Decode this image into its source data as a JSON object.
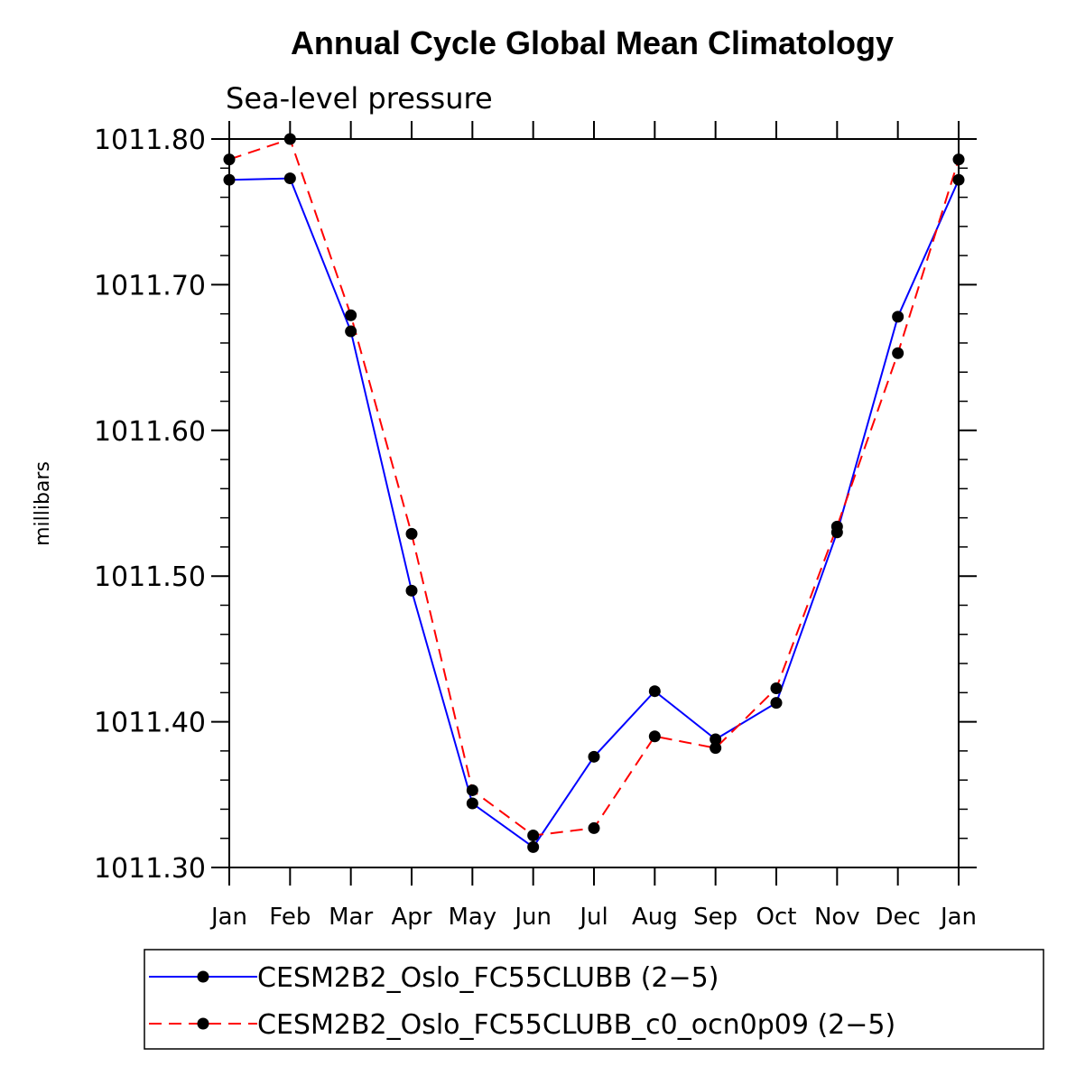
{
  "chart_data": {
    "type": "line",
    "title": "Annual Cycle Global Mean Climatology",
    "subtitle": "Sea-level pressure",
    "xlabel": "",
    "ylabel": "millibars",
    "categories": [
      "Jan",
      "Feb",
      "Mar",
      "Apr",
      "May",
      "Jun",
      "Jul",
      "Aug",
      "Sep",
      "Oct",
      "Nov",
      "Dec",
      "Jan"
    ],
    "ylim": [
      1011.3,
      1011.8
    ],
    "yticks": [
      "1011.30",
      "1011.40",
      "1011.50",
      "1011.60",
      "1011.70",
      "1011.80"
    ],
    "yticks_values": [
      1011.3,
      1011.4,
      1011.5,
      1011.6,
      1011.7,
      1011.8
    ],
    "series": [
      {
        "name": "CESM2B2_Oslo_FC55CLUBB (2−5)",
        "color": "#0000ff",
        "dash": "solid",
        "values": [
          1011.772,
          1011.773,
          1011.668,
          1011.49,
          1011.344,
          1011.314,
          1011.376,
          1011.421,
          1011.388,
          1011.413,
          1011.53,
          1011.678,
          1011.772
        ]
      },
      {
        "name": "CESM2B2_Oslo_FC55CLUBB_c0_ocn0p09 (2−5)",
        "color": "#ff0000",
        "dash": "dashed",
        "values": [
          1011.786,
          1011.8,
          1011.679,
          1011.529,
          1011.353,
          1011.322,
          1011.327,
          1011.39,
          1011.382,
          1011.423,
          1011.534,
          1011.653,
          1011.786
        ]
      }
    ]
  }
}
